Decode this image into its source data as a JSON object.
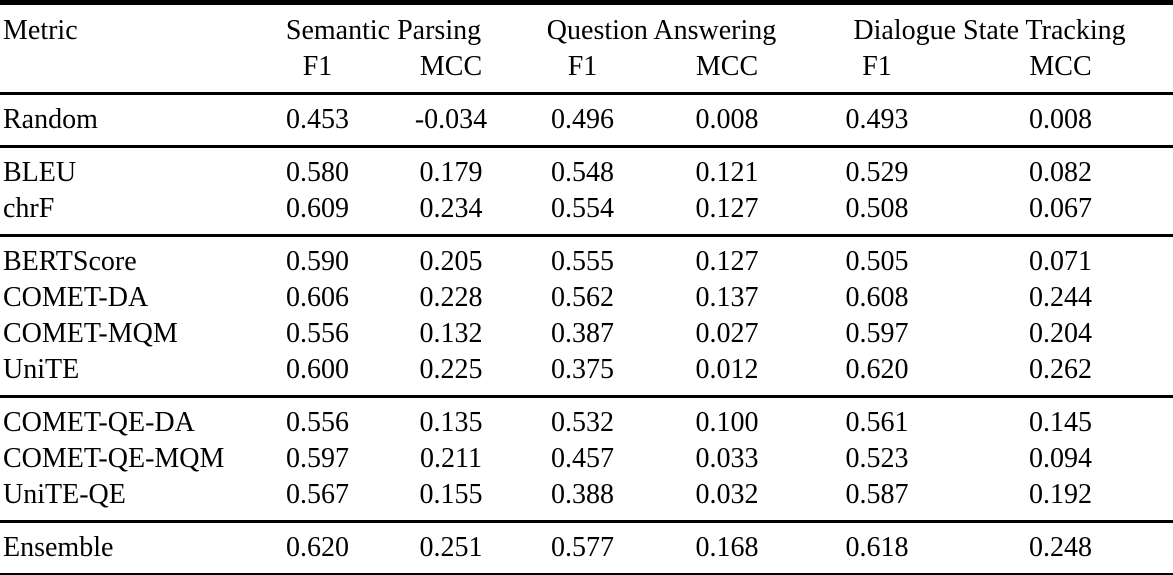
{
  "table": {
    "header": {
      "metric_label": "Metric",
      "group_labels": [
        "Semantic Parsing",
        "Question Answering",
        "Dialogue State Tracking"
      ],
      "sub_labels": [
        "F1",
        "MCC",
        "F1",
        "MCC",
        "F1",
        "MCC"
      ]
    },
    "groups": [
      {
        "rows": [
          {
            "metric": "Random",
            "values": [
              "0.453",
              "-0.034",
              "0.496",
              "0.008",
              "0.493",
              "0.008"
            ]
          }
        ]
      },
      {
        "rows": [
          {
            "metric": "BLEU",
            "values": [
              "0.580",
              "0.179",
              "0.548",
              "0.121",
              "0.529",
              "0.082"
            ]
          },
          {
            "metric": "chrF",
            "values": [
              "0.609",
              "0.234",
              "0.554",
              "0.127",
              "0.508",
              "0.067"
            ]
          }
        ]
      },
      {
        "rows": [
          {
            "metric": "BERTScore",
            "values": [
              "0.590",
              "0.205",
              "0.555",
              "0.127",
              "0.505",
              "0.071"
            ]
          },
          {
            "metric": "COMET-DA",
            "values": [
              "0.606",
              "0.228",
              "0.562",
              "0.137",
              "0.608",
              "0.244"
            ]
          },
          {
            "metric": "COMET-MQM",
            "values": [
              "0.556",
              "0.132",
              "0.387",
              "0.027",
              "0.597",
              "0.204"
            ]
          },
          {
            "metric": "UniTE",
            "values": [
              "0.600",
              "0.225",
              "0.375",
              "0.012",
              "0.620",
              "0.262"
            ]
          }
        ]
      },
      {
        "rows": [
          {
            "metric": "COMET-QE-DA",
            "values": [
              "0.556",
              "0.135",
              "0.532",
              "0.100",
              "0.561",
              "0.145"
            ]
          },
          {
            "metric": "COMET-QE-MQM",
            "values": [
              "0.597",
              "0.211",
              "0.457",
              "0.033",
              "0.523",
              "0.094"
            ]
          },
          {
            "metric": "UniTE-QE",
            "values": [
              "0.567",
              "0.155",
              "0.388",
              "0.032",
              "0.587",
              "0.192"
            ]
          }
        ]
      },
      {
        "rows": [
          {
            "metric": "Ensemble",
            "values": [
              "0.620",
              "0.251",
              "0.577",
              "0.168",
              "0.618",
              "0.248"
            ]
          }
        ]
      }
    ],
    "colors": {
      "text": "#000000",
      "background": "#ffffff",
      "rule": "#000000"
    }
  }
}
